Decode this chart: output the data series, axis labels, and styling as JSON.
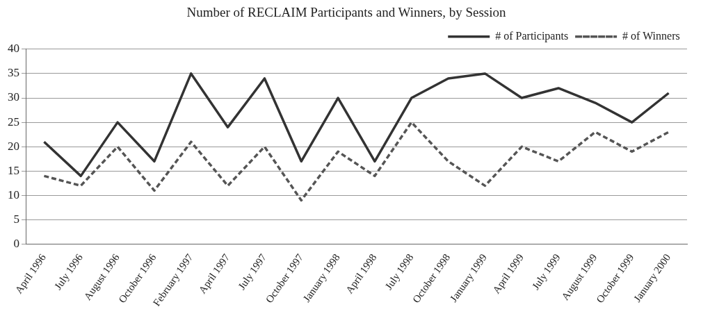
{
  "chart_data": {
    "type": "line",
    "title": "Number of RECLAIM Participants and Winners, by Session",
    "categories": [
      "April 1996",
      "July 1996",
      "August 1996",
      "October 1996",
      "February 1997",
      "April 1997",
      "July 1997",
      "October 1997",
      "January 1998",
      "April 1998",
      "July 1998",
      "October 1998",
      "January 1999",
      "April 1999",
      "July 1999",
      "August 1999",
      "October 1999",
      "January 2000"
    ],
    "series": [
      {
        "name": "# of Participants",
        "color": "#333333",
        "line_style": "solid",
        "values": [
          21,
          14,
          25,
          17,
          35,
          24,
          34,
          17,
          30,
          17,
          30,
          34,
          35,
          30,
          32,
          29,
          25,
          31
        ]
      },
      {
        "name": "# of Winners",
        "color": "#555555",
        "line_style": "dashed",
        "values": [
          14,
          12,
          20,
          11,
          21,
          12,
          20,
          9,
          19,
          14,
          25,
          17,
          12,
          20,
          17,
          23,
          19,
          23
        ]
      }
    ],
    "ylim": [
      0,
      40
    ],
    "yticks": [
      0,
      5,
      10,
      15,
      20,
      25,
      30,
      35,
      40
    ],
    "grid": "y",
    "legend": "top right",
    "marker": "none"
  }
}
